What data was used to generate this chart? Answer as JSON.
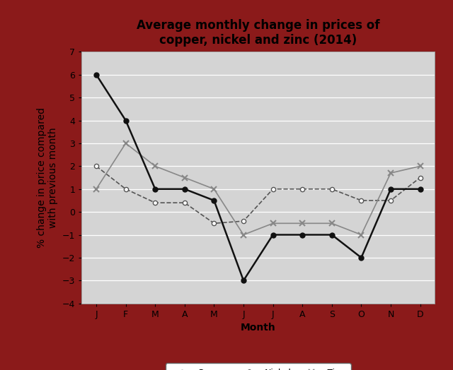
{
  "title": "Average monthly change in prices of\ncopper, nickel and zinc (2014)",
  "xlabel": "Month",
  "ylabel": "% change in price compared\nwith previous month",
  "months": [
    "J",
    "F",
    "M",
    "A",
    "M",
    "J",
    "J",
    "A",
    "S",
    "O",
    "N",
    "D"
  ],
  "copper": [
    2,
    1,
    0.4,
    0.4,
    -0.5,
    -0.4,
    1,
    1,
    1,
    0.5,
    0.5,
    1.5
  ],
  "nickel": [
    6,
    4,
    1,
    1,
    0.5,
    -3,
    -1,
    -1,
    -1,
    -2,
    1,
    1
  ],
  "zinc": [
    1,
    3,
    2,
    1.5,
    1,
    -1,
    -0.5,
    -0.5,
    -0.5,
    -1,
    1.7,
    2
  ],
  "ylim": [
    -4,
    7
  ],
  "yticks": [
    -4,
    -3,
    -2,
    -1,
    0,
    1,
    2,
    3,
    4,
    5,
    6,
    7
  ],
  "background_color": "#d4d4d4",
  "border_color": "#8b1a1a",
  "grid_color": "#ffffff",
  "line_color_copper": "#555555",
  "line_color_nickel": "#111111",
  "line_color_zinc": "#888888",
  "title_fontsize": 12,
  "axis_label_fontsize": 10,
  "tick_fontsize": 9,
  "legend_fontsize": 9
}
